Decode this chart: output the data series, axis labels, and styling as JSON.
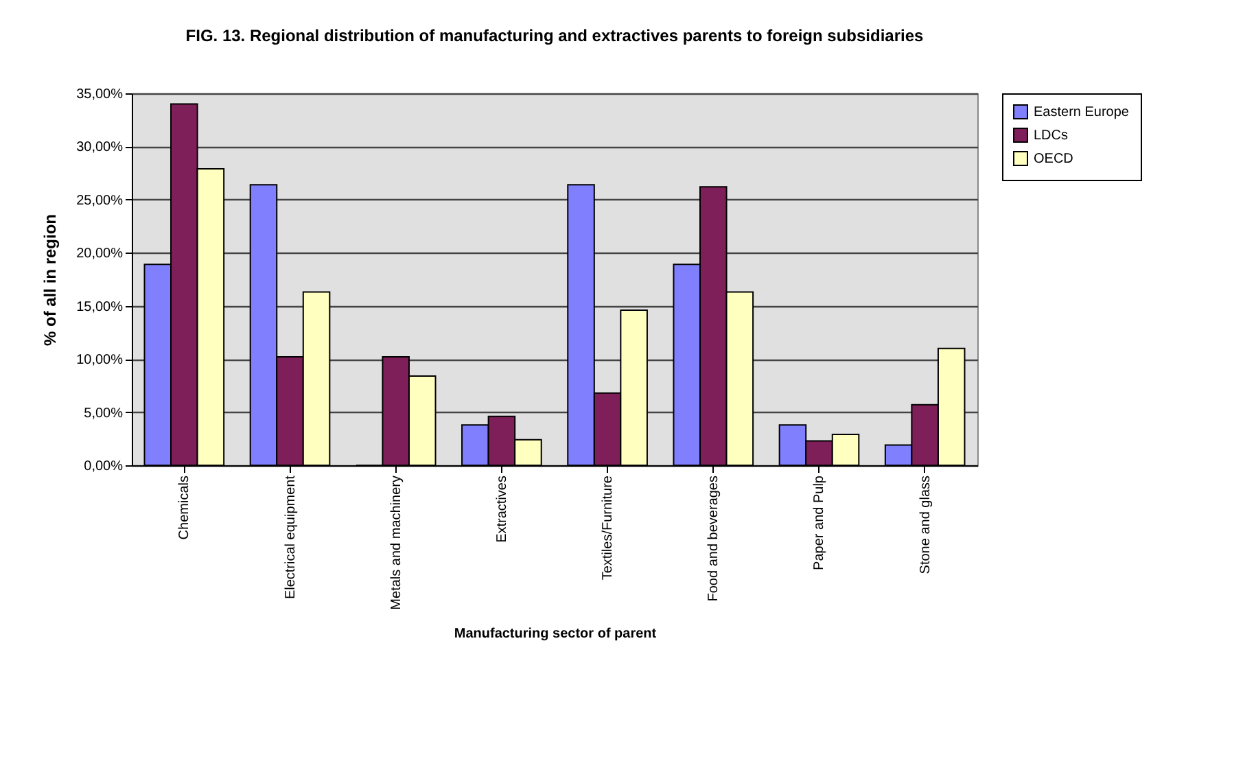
{
  "chart_data": {
    "type": "bar",
    "title": "FIG. 13.  Regional distribution of manufacturing and extractives parents to foreign subsidiaries",
    "xlabel": "Manufacturing sector of parent",
    "ylabel": "% of all in region",
    "categories": [
      "Chemicals",
      "Electrical equipment",
      "Metals and machinery",
      "Extractives",
      "Textiles/Furniture",
      "Food and beverages",
      "Paper and Pulp",
      "Stone and glass"
    ],
    "series": [
      {
        "name": "Eastern Europe",
        "color": "#8080ff",
        "values": [
          18.9,
          26.4,
          0,
          3.8,
          26.4,
          18.9,
          3.8,
          1.9
        ]
      },
      {
        "name": "LDCs",
        "color": "#7f1f5a",
        "values": [
          34.0,
          10.2,
          10.2,
          4.6,
          6.8,
          26.2,
          2.3,
          5.7
        ]
      },
      {
        "name": "OECD",
        "color": "#ffffc0",
        "values": [
          27.9,
          16.3,
          8.4,
          2.4,
          14.6,
          16.3,
          2.9,
          11.0
        ]
      }
    ],
    "ylim": [
      0,
      35
    ],
    "yticks": [
      {
        "value": 0,
        "label": "0,00%"
      },
      {
        "value": 5,
        "label": "5,00%"
      },
      {
        "value": 10,
        "label": "10,00%"
      },
      {
        "value": 15,
        "label": "15,00%"
      },
      {
        "value": 20,
        "label": "20,00%"
      },
      {
        "value": 25,
        "label": "25,00%"
      },
      {
        "value": 30,
        "label": "30,00%"
      },
      {
        "value": 35,
        "label": "35,00%"
      }
    ],
    "grid": "y",
    "legend": "right"
  }
}
